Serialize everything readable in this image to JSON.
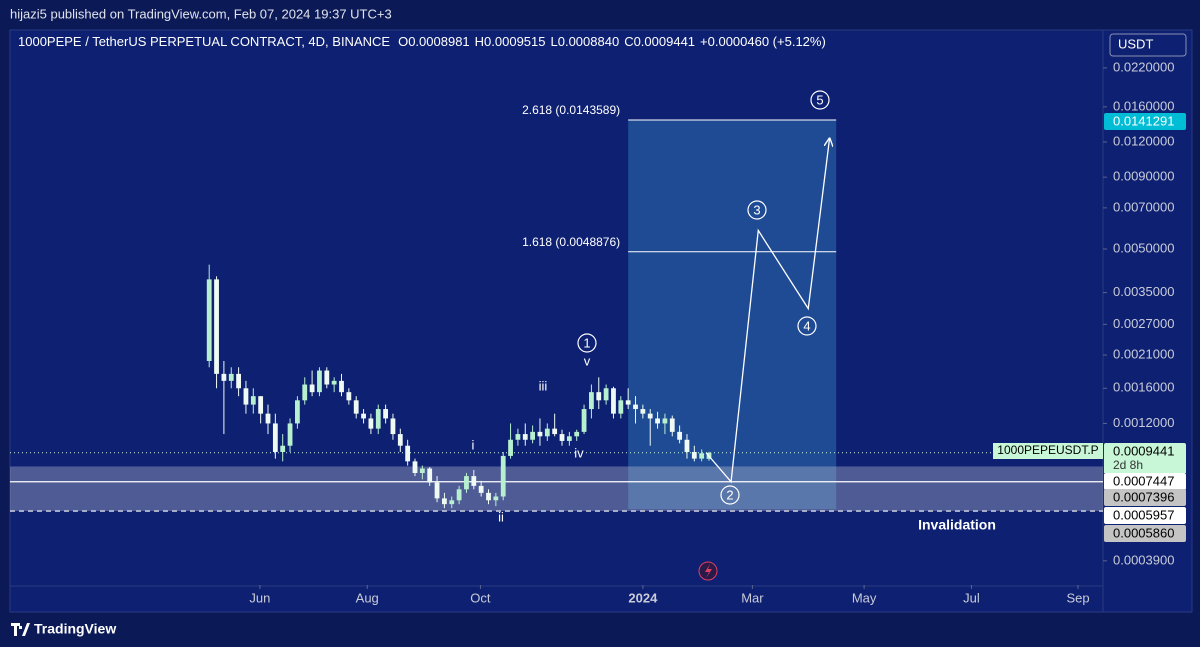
{
  "chart_data": {
    "type": "candlestick",
    "published": "hijazi5 published on TradingView.com, Feb 07, 2024 19:37 UTC+3",
    "title": "1000PEPE / TetherUS PERPETUAL CONTRACT, 4D, BINANCE",
    "legend_ohlc": [
      {
        "key": "O",
        "value": "0.0008981"
      },
      {
        "key": "H",
        "value": "0.0009515"
      },
      {
        "key": "L",
        "value": "0.0008840"
      },
      {
        "key": "C",
        "value": "0.0009441"
      }
    ],
    "change": "+0.0000460 (+5.12%)",
    "currency": "USDT",
    "up_color": "#b7f0cf",
    "down_color": "#eefaf3",
    "log_scale": true,
    "open": [
      0.002,
      0.0039,
      0.0018,
      0.0017,
      0.0018,
      0.0016,
      0.0014,
      0.0015,
      0.0013,
      0.0012,
      0.00095,
      0.001,
      0.0012,
      0.00145,
      0.00165,
      0.00155,
      0.00185,
      0.00165,
      0.0017,
      0.00155,
      0.00145,
      0.0013,
      0.00125,
      0.00115,
      0.00135,
      0.00125,
      0.0011,
      0.001,
      0.00088,
      0.0008,
      0.00083,
      0.00074,
      0.00065,
      0.00062,
      0.00064,
      0.0007,
      0.00078,
      0.00072,
      0.00068,
      0.00064,
      0.00066,
      0.00092,
      0.00105,
      0.0011,
      0.00105,
      0.00112,
      0.00108,
      0.00115,
      0.0011,
      0.00104,
      0.00108,
      0.00112,
      0.00135,
      0.00155,
      0.00145,
      0.0016,
      0.0013,
      0.00145,
      0.0014,
      0.00135,
      0.0013,
      0.00125,
      0.0012,
      0.00125,
      0.00112,
      0.00105,
      0.00095,
      0.0009,
      0.0008981
    ],
    "high": [
      0.0044,
      0.004,
      0.002,
      0.0019,
      0.0019,
      0.0017,
      0.0016,
      0.0015,
      0.0014,
      0.0013,
      0.0011,
      0.00125,
      0.0015,
      0.00175,
      0.00185,
      0.0019,
      0.0019,
      0.00175,
      0.0018,
      0.0016,
      0.0015,
      0.00135,
      0.0013,
      0.0014,
      0.0014,
      0.0013,
      0.00115,
      0.00105,
      0.0009,
      0.00085,
      0.00084,
      0.00078,
      0.00068,
      0.00066,
      0.00072,
      0.0008,
      0.00082,
      0.00075,
      0.0007,
      0.00068,
      0.00095,
      0.0012,
      0.00115,
      0.0012,
      0.00118,
      0.00125,
      0.0012,
      0.0013,
      0.00114,
      0.00112,
      0.00114,
      0.0014,
      0.00165,
      0.00175,
      0.00165,
      0.00162,
      0.0015,
      0.0016,
      0.0015,
      0.0014,
      0.00135,
      0.00132,
      0.0013,
      0.00128,
      0.00118,
      0.0011,
      0.001,
      0.00097,
      0.0009515
    ],
    "low": [
      0.0019,
      0.0016,
      0.0011,
      0.0016,
      0.0015,
      0.0013,
      0.0013,
      0.0012,
      0.0011,
      0.0009,
      0.00088,
      0.00095,
      0.00115,
      0.0014,
      0.0015,
      0.0015,
      0.0016,
      0.00155,
      0.0015,
      0.0014,
      0.00125,
      0.0012,
      0.0011,
      0.0011,
      0.0012,
      0.00105,
      0.00095,
      0.00085,
      0.00078,
      0.00076,
      0.00072,
      0.00063,
      0.0006,
      0.0006,
      0.00062,
      0.00068,
      0.0007,
      0.00066,
      0.00062,
      0.00061,
      0.00064,
      0.0009,
      0.001,
      0.001,
      0.00102,
      0.001,
      0.00104,
      0.00108,
      0.001,
      0.001,
      0.00104,
      0.0011,
      0.00125,
      0.00135,
      0.0014,
      0.00125,
      0.00125,
      0.00135,
      0.0012,
      0.00125,
      0.001,
      0.00115,
      0.0011,
      0.00108,
      0.00102,
      0.0009,
      0.00088,
      0.00088,
      0.000884
    ],
    "close": [
      0.0039,
      0.0018,
      0.0017,
      0.0018,
      0.0016,
      0.0014,
      0.0015,
      0.0013,
      0.0012,
      0.00095,
      0.001,
      0.0012,
      0.00145,
      0.00165,
      0.00155,
      0.00185,
      0.00165,
      0.0017,
      0.00155,
      0.00145,
      0.0013,
      0.00125,
      0.00115,
      0.00135,
      0.00125,
      0.0011,
      0.001,
      0.00088,
      0.0008,
      0.00083,
      0.00074,
      0.00065,
      0.00062,
      0.00064,
      0.0007,
      0.00078,
      0.00072,
      0.00068,
      0.00064,
      0.00066,
      0.00092,
      0.00105,
      0.0011,
      0.00105,
      0.00112,
      0.00108,
      0.00115,
      0.0011,
      0.00104,
      0.00108,
      0.00112,
      0.00135,
      0.00155,
      0.00145,
      0.0016,
      0.0013,
      0.00145,
      0.0014,
      0.00135,
      0.0013,
      0.00125,
      0.0012,
      0.00125,
      0.00112,
      0.00105,
      0.00095,
      0.0009,
      0.00094,
      0.0009441
    ],
    "ylim": [
      0.00032,
      0.03
    ],
    "yticks": [
      {
        "value": 0.022,
        "label": "0.0220000"
      },
      {
        "value": 0.016,
        "label": "0.0160000"
      },
      {
        "value": 0.012,
        "label": "0.0120000"
      },
      {
        "value": 0.009,
        "label": "0.0090000"
      },
      {
        "value": 0.007,
        "label": "0.0070000"
      },
      {
        "value": 0.005,
        "label": "0.0050000"
      },
      {
        "value": 0.0035,
        "label": "0.0035000"
      },
      {
        "value": 0.0027,
        "label": "0.0027000"
      },
      {
        "value": 0.0021,
        "label": "0.0021000"
      },
      {
        "value": 0.0016,
        "label": "0.0016000"
      },
      {
        "value": 0.0012,
        "label": "0.0012000"
      },
      {
        "value": 0.00039,
        "label": "0.0003900"
      }
    ],
    "xlim": [
      -27.1,
      121.6
    ],
    "xticks": [
      {
        "value": 6.9,
        "label": "Jun"
      },
      {
        "value": 21.5,
        "label": "Aug"
      },
      {
        "value": 36.9,
        "label": "Oct"
      },
      {
        "value": 59.0,
        "label": "2024"
      },
      {
        "value": 73.9,
        "label": "Mar"
      },
      {
        "value": 89.1,
        "label": "May"
      },
      {
        "value": 103.7,
        "label": "Jul"
      },
      {
        "value": 118.2,
        "label": "Sep"
      }
    ],
    "fib_zone": {
      "x": [
        57.0,
        85.3
      ],
      "y": [
        0.000595,
        0.0143589
      ],
      "color": "#2d6fb0"
    },
    "fib_levels": [
      {
        "label": "2.618 (0.0143589)",
        "value": 0.0143589
      },
      {
        "label": "1.618 (0.0048876)",
        "value": 0.0048876
      }
    ],
    "support_zone": {
      "y": [
        0.000586,
        0.000844
      ],
      "color": "#c9cbd6"
    },
    "level_line": 0.0007447,
    "invalidation_line": 0.000586,
    "last_price_line": 0.0009441,
    "wave": {
      "x": [
        67.6,
        71.0,
        74.7,
        81.5,
        84.4
      ],
      "y": [
        0.0009441,
        0.0007447,
        0.00582,
        0.00307,
        0.01236
      ]
    },
    "wave_labels": [
      "1",
      "2",
      "3",
      "4",
      "5"
    ],
    "subwave_labels": [
      "i",
      "ii",
      "iii",
      "iv",
      "v"
    ],
    "annotation": "Invalidation",
    "symbol_tag": "1000PEPEUSDT.P",
    "countdown": "2d 8h",
    "price_labels": [
      {
        "text": "0.0141291",
        "bg": "#00bcd4",
        "fg": "#ffffff"
      },
      {
        "text": "0.0009441",
        "bg": "#c8f7d8",
        "fg": "#000000"
      },
      {
        "text": "0.0007447",
        "bg": "#ffffff",
        "fg": "#000000"
      },
      {
        "text": "0.0007396",
        "bg": "#c4c4c4",
        "fg": "#000000"
      },
      {
        "text": "0.0005957",
        "bg": "#ffffff",
        "fg": "#000000"
      },
      {
        "text": "0.0005860",
        "bg": "#c4c4c4",
        "fg": "#000000"
      }
    ],
    "brand": "TradingView"
  }
}
